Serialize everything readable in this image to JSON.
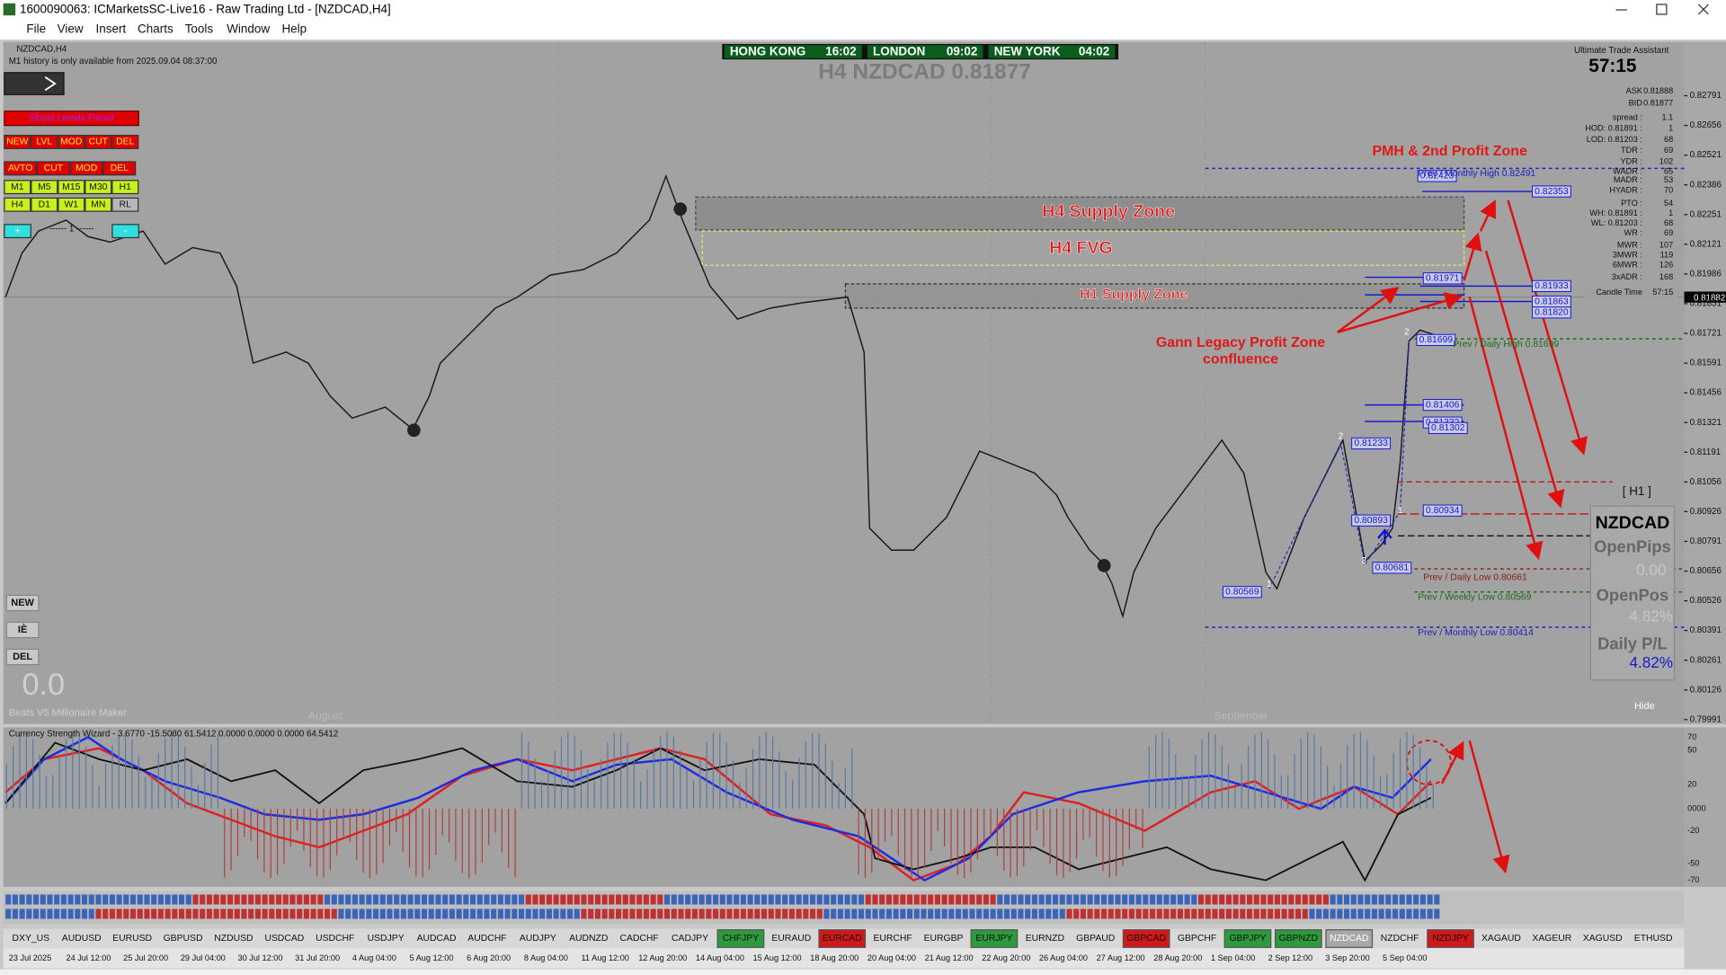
{
  "window": {
    "title": "1600090063: ICMarketsSC-Live16 - Raw Trading Ltd - [NZDCAD,H4]"
  },
  "menu": [
    "File",
    "View",
    "Insert",
    "Charts",
    "Tools",
    "Window",
    "Help"
  ],
  "chart": {
    "symbol": "NZDCAD,H4",
    "history_note": "M1 history is only available from 2025.09.04 08:37:00",
    "heading": "H4 NZDCAD 0.81877",
    "clocks": [
      {
        "city": "HONG KONG",
        "time": "16:02"
      },
      {
        "city": "LONDON",
        "time": "09:02"
      },
      {
        "city": "NEW YORK",
        "time": "04:02"
      }
    ],
    "month_labels": [
      "August",
      "September"
    ],
    "indicator_name": "Beats V5 Millionaire Maker",
    "big_value": "0.0"
  },
  "zones": [
    "H4 Supply Zone",
    "H4 FVG",
    "H1 Supply Zone"
  ],
  "annotations": {
    "pmh": "PMH & 2nd Profit Zone",
    "gann": [
      "Gann Legacy Profit Zone",
      "confluence"
    ]
  },
  "levels": [
    "0.82423",
    "0.82353",
    "0.81971",
    "0.81933",
    "0.81863",
    "0.81820",
    "0.81699",
    "0.81406",
    "0.81332",
    "0.81302",
    "0.81233",
    "0.80934",
    "0.80893",
    "0.80681",
    "0.80569"
  ],
  "prev_levels": [
    "Prev / Monthly High 0.82491",
    "Prev / Daily High 0.81699",
    "Prev / Daily Low 0.80661",
    "Prev / Weekly Low 0.80569",
    "Prev / Monthly Low 0.80414"
  ],
  "wave_labels": [
    "1",
    "2",
    "3",
    "1",
    "2"
  ],
  "h1_label": "[ H1 ]",
  "panel": {
    "title": "NZDCAD",
    "rows": [
      [
        "OpenPips",
        "0.00"
      ],
      [
        "OpenPos",
        "4.82%"
      ],
      [
        "Daily P/L",
        "4.82%"
      ]
    ],
    "hide": "Hide"
  },
  "uta": {
    "title": "Ultimate Trade Assistant",
    "timer": "57:15",
    "rows": [
      [
        "ASK",
        "0.81888"
      ],
      [
        "BID",
        "0.81877"
      ],
      [
        "spread :",
        "1.1"
      ],
      [
        "HOD: 0.81891 :",
        "1"
      ],
      [
        "LOD: 0.81203 :",
        "68"
      ],
      [
        "TDR :",
        "69"
      ],
      [
        "YDR :",
        "102"
      ],
      [
        "WADR :",
        "65"
      ],
      [
        "MADR :",
        "53"
      ],
      [
        "HYADR :",
        "70"
      ],
      [
        "PTO :",
        "54"
      ],
      [
        "WH: 0.81891 :",
        "1"
      ],
      [
        "WL: 0.81203 :",
        "68"
      ],
      [
        "WR :",
        "69"
      ],
      [
        "MWR :",
        "107"
      ],
      [
        "3MWR :",
        "119"
      ],
      [
        "6MWR :",
        "126"
      ],
      [
        "3xADR :",
        "168"
      ],
      [
        "Candle Time",
        "57:15"
      ]
    ]
  },
  "axis": {
    "labels": [
      "0.82791",
      "0.82656",
      "0.82521",
      "0.82386",
      "0.82251",
      "0.82121",
      "0.81986",
      "0.81851",
      "0.81721",
      "0.81591",
      "0.81456",
      "0.81321",
      "0.81191",
      "0.81056",
      "0.80926",
      "0.80791",
      "0.80656",
      "0.80526",
      "0.80391",
      "0.80261",
      "0.80126",
      "0.79991"
    ],
    "current": "0.81882"
  },
  "left_panel": {
    "show_levels": "Show Levels Panel",
    "rows": [
      [
        "NEW",
        "LVL",
        "MOD",
        "CUT",
        "DEL"
      ],
      [
        "AVTO",
        "CUT",
        "MOD",
        "DEL"
      ],
      [
        "M1",
        "M5",
        "M15",
        "M30",
        "H1"
      ],
      [
        "H4",
        "D1",
        "W1",
        "MN",
        "RL"
      ]
    ],
    "plus": "+",
    "step": "------ 1 ------",
    "minus": "-"
  },
  "side_buttons": [
    "NEW",
    "IÈ",
    "DEL"
  ],
  "indicator": {
    "header": "Currency Strength Wizard - 3.6770 -15.5080 61.5412 0.0000 0.0000 0.0000 64.5412",
    "scale": [
      "70",
      "50",
      "20",
      "0000",
      "-20",
      "-50",
      "-70"
    ]
  },
  "tabs": [
    {
      "label": "DXY_US",
      "state": "plain"
    },
    {
      "label": "AUDUSD",
      "state": "plain"
    },
    {
      "label": "EURUSD",
      "state": "plain"
    },
    {
      "label": "GBPUSD",
      "state": "plain"
    },
    {
      "label": "NZDUSD",
      "state": "plain"
    },
    {
      "label": "USDCAD",
      "state": "plain"
    },
    {
      "label": "USDCHF",
      "state": "plain"
    },
    {
      "label": "USDJPY",
      "state": "plain"
    },
    {
      "label": "AUDCAD",
      "state": "plain"
    },
    {
      "label": "AUDCHF",
      "state": "plain"
    },
    {
      "label": "AUDJPY",
      "state": "plain"
    },
    {
      "label": "AUDNZD",
      "state": "plain"
    },
    {
      "label": "CADCHF",
      "state": "plain"
    },
    {
      "label": "CADJPY",
      "state": "plain"
    },
    {
      "label": "CHFJPY",
      "state": "green"
    },
    {
      "label": "EURAUD",
      "state": "plain"
    },
    {
      "label": "EURCAD",
      "state": "red"
    },
    {
      "label": "EURCHF",
      "state": "plain"
    },
    {
      "label": "EURGBP",
      "state": "plain"
    },
    {
      "label": "EURJPY",
      "state": "green"
    },
    {
      "label": "EURNZD",
      "state": "plain"
    },
    {
      "label": "GBPAUD",
      "state": "plain"
    },
    {
      "label": "GBPCAD",
      "state": "red"
    },
    {
      "label": "GBPCHF",
      "state": "plain"
    },
    {
      "label": "GBPJPY",
      "state": "green"
    },
    {
      "label": "GBPNZD",
      "state": "green"
    },
    {
      "label": "NZDCAD",
      "state": "active"
    },
    {
      "label": "NZDCHF",
      "state": "plain"
    },
    {
      "label": "NZDJPY",
      "state": "red"
    },
    {
      "label": "XAGAUD",
      "state": "plain"
    },
    {
      "label": "XAGEUR",
      "state": "plain"
    },
    {
      "label": "XAGUSD",
      "state": "plain"
    },
    {
      "label": "ETHUSD",
      "state": "plain"
    }
  ],
  "dates": [
    "23 Jul 2025",
    "24 Jul 12:00",
    "25 Jul 20:00",
    "29 Jul 04:00",
    "30 Jul 12:00",
    "31 Jul 20:00",
    "4 Aug 04:00",
    "5 Aug 12:00",
    "6 Aug 20:00",
    "8 Aug 04:00",
    "11 Aug 12:00",
    "12 Aug 20:00",
    "14 Aug 04:00",
    "15 Aug 12:00",
    "18 Aug 20:00",
    "20 Aug 04:00",
    "21 Aug 12:00",
    "22 Aug 20:00",
    "26 Aug 04:00",
    "27 Aug 12:00",
    "28 Aug 20:00",
    "1 Sep 04:00",
    "2 Sep 12:00",
    "3 Sep 20:00",
    "5 Sep 04:00"
  ]
}
